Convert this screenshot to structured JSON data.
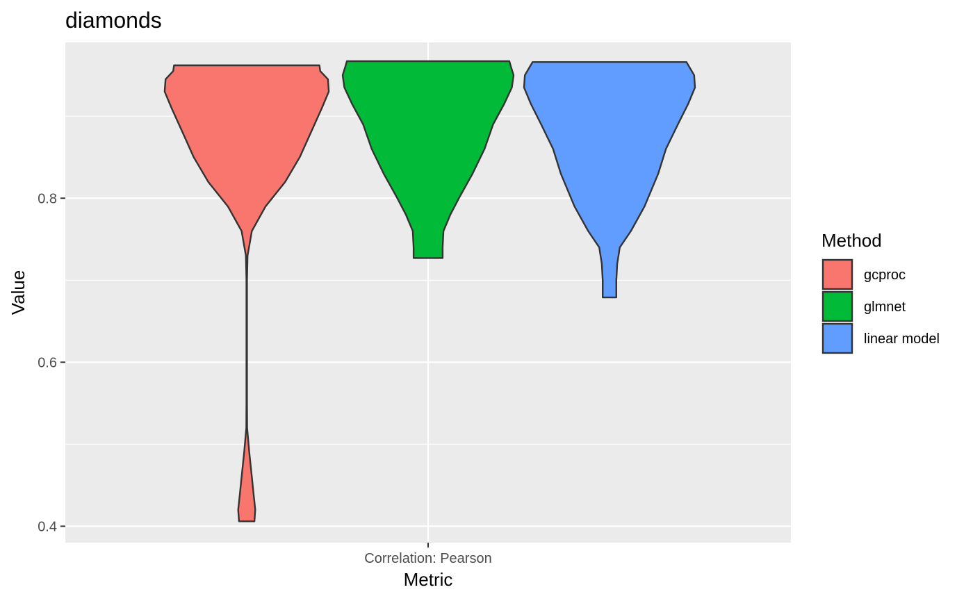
{
  "chart_data": {
    "type": "violin",
    "title": "diamonds",
    "xlabel": "Metric",
    "ylabel": "Value",
    "categories": [
      "Correlation: Pearson"
    ],
    "ylim": [
      0.38,
      0.99
    ],
    "yticks": [
      0.4,
      0.6,
      0.8
    ],
    "ytick_labels": [
      "0.4",
      "0.6",
      "0.8"
    ],
    "grid": true,
    "legend": {
      "title": "Method",
      "position": "right",
      "entries": [
        "gcproc",
        "glmnet",
        "linear model"
      ]
    },
    "series": [
      {
        "name": "gcproc",
        "color": "#F8766D",
        "min": 0.406,
        "max": 0.962,
        "density": [
          [
            0.406,
            0.09
          ],
          [
            0.42,
            0.1
          ],
          [
            0.44,
            0.08
          ],
          [
            0.46,
            0.06
          ],
          [
            0.49,
            0.03
          ],
          [
            0.52,
            0.005
          ],
          [
            0.55,
            0.003
          ],
          [
            0.6,
            0.003
          ],
          [
            0.65,
            0.003
          ],
          [
            0.7,
            0.003
          ],
          [
            0.73,
            0.01
          ],
          [
            0.76,
            0.06
          ],
          [
            0.79,
            0.22
          ],
          [
            0.82,
            0.45
          ],
          [
            0.85,
            0.62
          ],
          [
            0.88,
            0.75
          ],
          [
            0.91,
            0.88
          ],
          [
            0.93,
            0.96
          ],
          [
            0.945,
            0.95
          ],
          [
            0.955,
            0.86
          ],
          [
            0.962,
            0.85
          ]
        ]
      },
      {
        "name": "glmnet",
        "color": "#00BA38",
        "min": 0.727,
        "max": 0.967,
        "density": [
          [
            0.727,
            0.17
          ],
          [
            0.74,
            0.17
          ],
          [
            0.76,
            0.18
          ],
          [
            0.78,
            0.26
          ],
          [
            0.8,
            0.36
          ],
          [
            0.83,
            0.52
          ],
          [
            0.86,
            0.66
          ],
          [
            0.89,
            0.76
          ],
          [
            0.915,
            0.89
          ],
          [
            0.935,
            0.98
          ],
          [
            0.95,
            1.0
          ],
          [
            0.96,
            0.97
          ],
          [
            0.967,
            0.95
          ]
        ]
      },
      {
        "name": "linear model",
        "color": "#619CFF",
        "min": 0.679,
        "max": 0.966,
        "density": [
          [
            0.679,
            0.08
          ],
          [
            0.7,
            0.08
          ],
          [
            0.72,
            0.09
          ],
          [
            0.74,
            0.12
          ],
          [
            0.76,
            0.25
          ],
          [
            0.79,
            0.41
          ],
          [
            0.83,
            0.57
          ],
          [
            0.86,
            0.66
          ],
          [
            0.89,
            0.8
          ],
          [
            0.915,
            0.92
          ],
          [
            0.935,
            1.0
          ],
          [
            0.95,
            0.99
          ],
          [
            0.966,
            0.9
          ]
        ]
      }
    ]
  }
}
